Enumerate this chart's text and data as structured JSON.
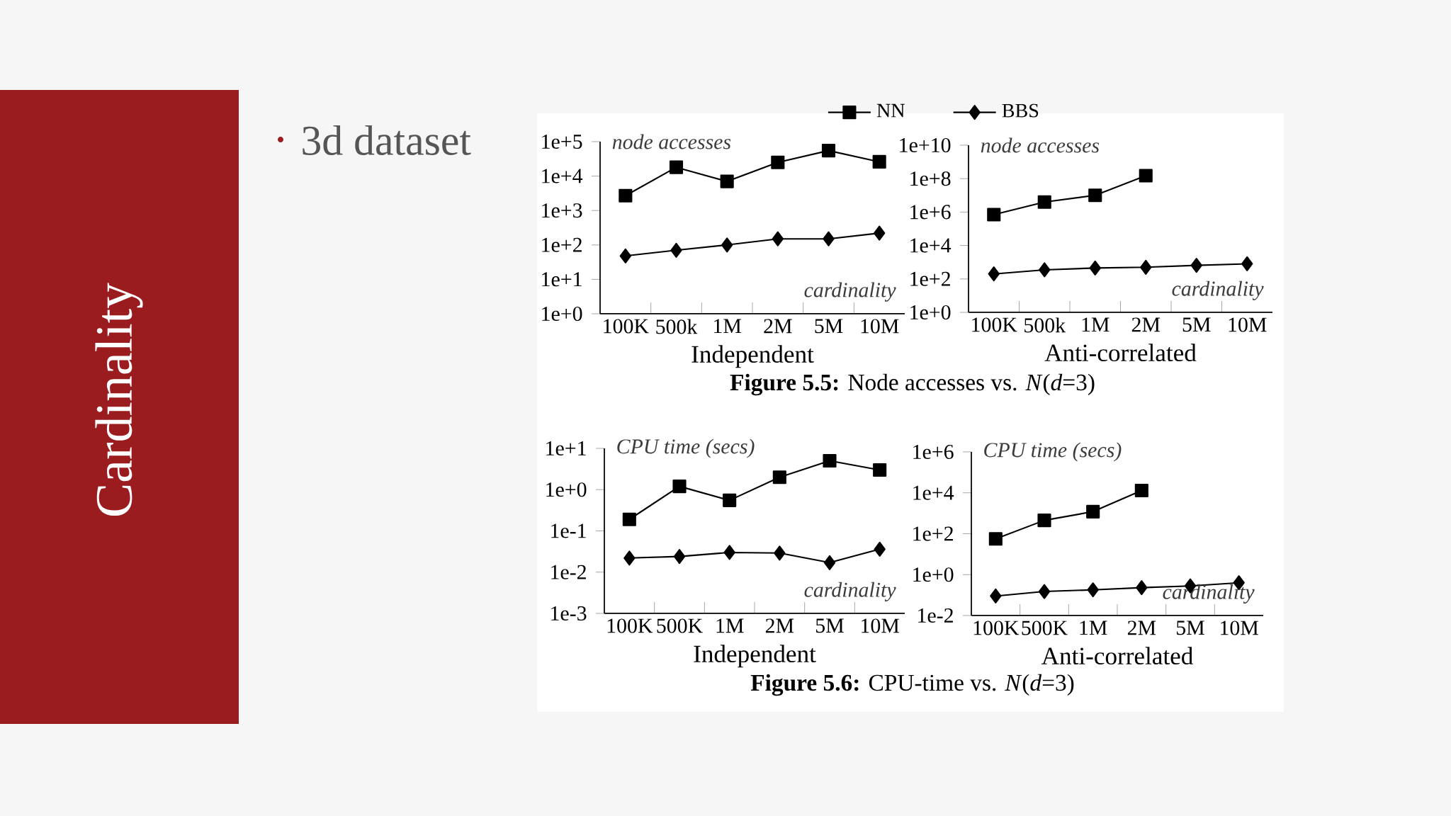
{
  "chart_data": [
    {
      "type": "line",
      "title": "Independent",
      "xlabel": "cardinality",
      "ylabel": "node accesses",
      "log": "y",
      "legend": "top right",
      "annotations": [
        "Cardinality",
        "3d dataset",
        "**Figure 5.5:** Node accesses vs. *N*(*d*=3)"
      ],
      "categories": [
        "100K",
        "500k",
        "1M",
        "2M",
        "5M",
        "10M"
      ],
      "ylim": [
        1,
        100000
      ],
      "yticks": [
        {
          "value": 1,
          "label": "1e+0"
        },
        {
          "value": 10,
          "label": "1e+1"
        },
        {
          "value": 100,
          "label": "1e+2"
        },
        {
          "value": 1000,
          "label": "1e+3"
        },
        {
          "value": 10000,
          "label": "1e+4"
        },
        {
          "value": 100000,
          "label": "1e+5"
        }
      ],
      "series": [
        {
          "name": "NN",
          "color": "#000000",
          "marker": "square",
          "values": [
            2700,
            18000,
            7000,
            25000,
            55000,
            26000
          ]
        },
        {
          "name": "BBS",
          "color": "#000000",
          "marker": "diamond",
          "values": [
            48,
            70,
            100,
            150,
            150,
            220
          ]
        }
      ]
    },
    {
      "type": "line",
      "title": "Anti-correlated",
      "xlabel": "cardinality",
      "ylabel": "node accesses",
      "log": "y",
      "categories": [
        "100K",
        "500k",
        "1M",
        "2M",
        "5M",
        "10M"
      ],
      "ylim": [
        1,
        10000000000
      ],
      "yticks": [
        {
          "value": 1,
          "label": "1e+0"
        },
        {
          "value": 100,
          "label": "1e+2"
        },
        {
          "value": 10000,
          "label": "1e+4"
        },
        {
          "value": 1000000,
          "label": "1e+6"
        },
        {
          "value": 100000000,
          "label": "1e+8"
        },
        {
          "value": 10000000000,
          "label": "1e+10"
        }
      ],
      "series": [
        {
          "color": "#000000",
          "marker": "square",
          "values": [
            700000,
            4000000,
            10000000,
            150000000,
            null,
            null
          ]
        },
        {
          "color": "#000000",
          "marker": "diamond",
          "values": [
            200,
            350,
            450,
            500,
            650,
            800
          ]
        }
      ]
    },
    {
      "type": "line",
      "title": "Independent",
      "xlabel": "cardinality",
      "ylabel": "CPU time (secs)",
      "log": "y",
      "annotations": [
        "**Figure 5.6:** CPU-time vs. *N*(*d*=3)"
      ],
      "categories": [
        "100K",
        "500K",
        "1M",
        "2M",
        "5M",
        "10M"
      ],
      "ylim": [
        0.001,
        10
      ],
      "yticks": [
        {
          "value": 0.001,
          "label": "1e-3"
        },
        {
          "value": 0.01,
          "label": "1e-2"
        },
        {
          "value": 0.1,
          "label": "1e-1"
        },
        {
          "value": 1,
          "label": "1e+0"
        },
        {
          "value": 10,
          "label": "1e+1"
        }
      ],
      "series": [
        {
          "color": "#000000",
          "marker": "square",
          "values": [
            0.19,
            1.2,
            0.55,
            2,
            5,
            3
          ]
        },
        {
          "color": "#000000",
          "marker": "diamond",
          "values": [
            0.022,
            0.024,
            0.03,
            0.029,
            0.017,
            0.036
          ]
        }
      ]
    },
    {
      "type": "line",
      "title": "Anti-correlated",
      "xlabel": "cardinality",
      "ylabel": "CPU time (secs)",
      "log": "y",
      "categories": [
        "100K",
        "500K",
        "1M",
        "2M",
        "5M",
        "10M"
      ],
      "ylim": [
        0.01,
        1000000
      ],
      "yticks": [
        {
          "value": 0.01,
          "label": "1e-2"
        },
        {
          "value": 1,
          "label": "1e+0"
        },
        {
          "value": 100,
          "label": "1e+2"
        },
        {
          "value": 10000,
          "label": "1e+4"
        },
        {
          "value": 1000000,
          "label": "1e+6"
        }
      ],
      "series": [
        {
          "color": "#000000",
          "marker": "square",
          "values": [
            56,
            450,
            1200,
            13000,
            null,
            null
          ]
        },
        {
          "color": "#000000",
          "marker": "diamond",
          "values": [
            0.09,
            0.15,
            0.18,
            0.23,
            0.28,
            0.4
          ]
        }
      ]
    }
  ]
}
